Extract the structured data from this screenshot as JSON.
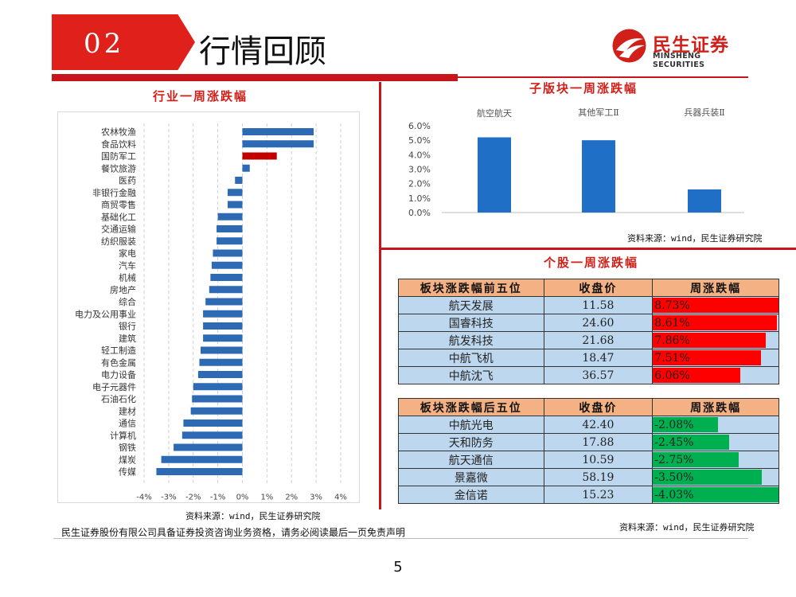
{
  "header": {
    "section_number": "02",
    "section_title": "行情回顾",
    "logo_cn": "民生证券",
    "logo_en": "MINSHENG SECURITIES"
  },
  "left_panel": {
    "title": "行业一周涨跌幅",
    "source": "资料来源：wind，民生证券研究院"
  },
  "top_right_panel": {
    "title": "子版块一周涨跌幅",
    "source": "资料来源：wind，民生证券研究院"
  },
  "bottom_right_panel": {
    "title": "个股一周涨跌幅",
    "source": "资料来源：wind，民生证券研究院"
  },
  "chart_data": [
    {
      "type": "bar",
      "orientation": "horizontal",
      "title": "行业一周涨跌幅",
      "categories": [
        "农林牧渔",
        "食品饮料",
        "国防军工",
        "餐饮旅游",
        "医药",
        "非银行金融",
        "商贸零售",
        "基础化工",
        "交通运输",
        "纺织服装",
        "家电",
        "汽车",
        "机械",
        "房地产",
        "综合",
        "电力及公用事业",
        "银行",
        "建筑",
        "轻工制造",
        "有色金属",
        "电力设备",
        "电子元器件",
        "石油石化",
        "建材",
        "通信",
        "计算机",
        "钢铁",
        "煤炭",
        "传媒"
      ],
      "values": [
        2.9,
        2.9,
        1.4,
        0.3,
        -0.3,
        -0.6,
        -0.6,
        -1.0,
        -1.05,
        -1.05,
        -1.2,
        -1.25,
        -1.3,
        -1.35,
        -1.5,
        -1.6,
        -1.6,
        -1.6,
        -1.7,
        -1.75,
        -1.8,
        -2.0,
        -2.05,
        -2.1,
        -2.4,
        -2.45,
        -2.8,
        -3.3,
        -3.5
      ],
      "highlight": "国防军工",
      "colors": {
        "default": "#2e6ab3",
        "highlight": "#c00000"
      },
      "xlim": [
        -4,
        4
      ],
      "xticks": [
        "-4%",
        "-3%",
        "-2%",
        "-1%",
        "0%",
        "1%",
        "2%",
        "3%",
        "4%"
      ],
      "grid": "vertical dashed"
    },
    {
      "type": "bar",
      "title": "子版块一周涨跌幅",
      "categories": [
        "航空航天",
        "其他军工Ⅱ",
        "兵器兵装Ⅱ"
      ],
      "values": [
        5.2,
        5.0,
        1.6
      ],
      "color": "#1f6fc6",
      "ylim": [
        0,
        6
      ],
      "yticks": [
        "0.0%",
        "1.0%",
        "2.0%",
        "3.0%",
        "4.0%",
        "5.0%",
        "6.0%"
      ],
      "category_labels_position": "top"
    },
    {
      "type": "table",
      "title": "板块涨跌幅前五位",
      "columns": [
        "板块涨跌幅前五位",
        "收盘价",
        "周涨跌幅"
      ],
      "rows": [
        {
          "name": "航天发展",
          "close": "11.58",
          "change": "8.73%",
          "value": 8.73
        },
        {
          "name": "国睿科技",
          "close": "24.60",
          "change": "8.61%",
          "value": 8.61
        },
        {
          "name": "航发科技",
          "close": "21.68",
          "change": "7.86%",
          "value": 7.86
        },
        {
          "name": "中航飞机",
          "close": "18.47",
          "change": "7.51%",
          "value": 7.51
        },
        {
          "name": "中航沈飞",
          "close": "36.57",
          "change": "6.06%",
          "value": 6.06
        }
      ],
      "bar_color": "#ff0000",
      "bar_max": 8.73
    },
    {
      "type": "table",
      "title": "板块涨跌幅后五位",
      "columns": [
        "板块涨跌幅后五位",
        "收盘价",
        "周涨跌幅"
      ],
      "rows": [
        {
          "name": "中航光电",
          "close": "42.40",
          "change": "-2.08%",
          "value": -2.08
        },
        {
          "name": "天和防务",
          "close": "17.88",
          "change": "-2.45%",
          "value": -2.45
        },
        {
          "name": "航天通信",
          "close": "10.59",
          "change": "-2.75%",
          "value": -2.75
        },
        {
          "name": "景嘉微",
          "close": "58.19",
          "change": "-3.50%",
          "value": -3.5
        },
        {
          "name": "金信诺",
          "close": "15.23",
          "change": "-4.03%",
          "value": -4.03
        }
      ],
      "bar_color": "#00b050",
      "bar_max": 4.03
    }
  ],
  "footer": {
    "disclaimer": "民生证券股份有限公司具备证券投资咨询业务资格，请务必阅读最后一页免责声明",
    "page_number": "5"
  }
}
